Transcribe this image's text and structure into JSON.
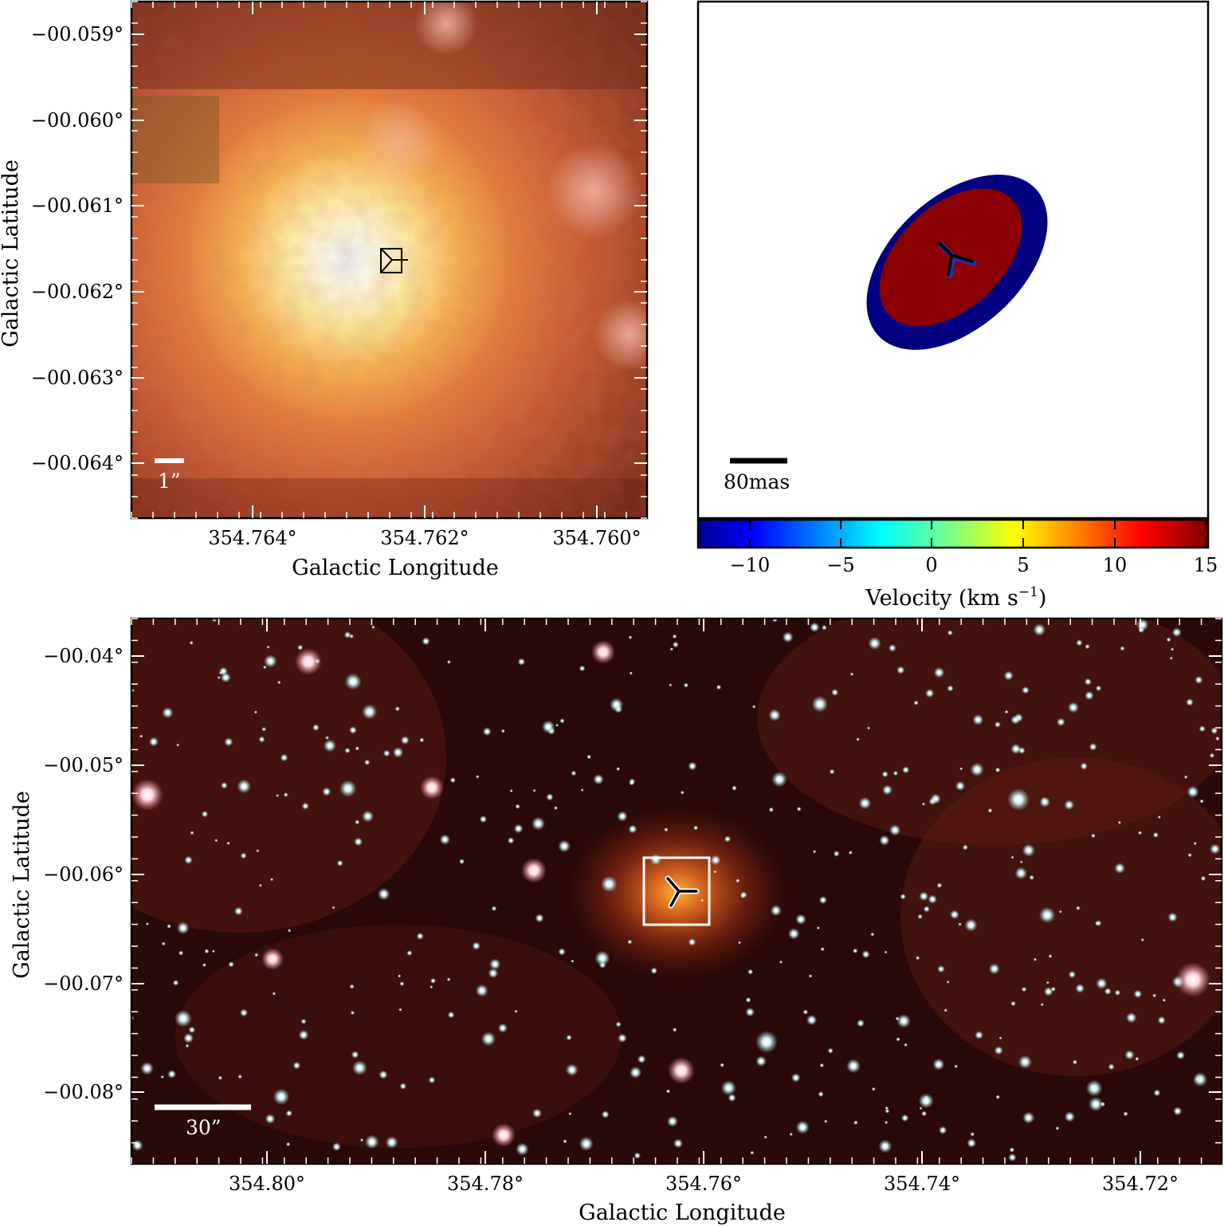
{
  "panels": {
    "top_left": {
      "xlabel": "Galactic Longitude",
      "ylabel": "Galactic Latitude",
      "x_ticks": [
        "354.764°",
        "354.762°",
        "354.760°"
      ],
      "y_ticks": [
        "−00.059°",
        "−00.060°",
        "−00.061°",
        "−00.062°",
        "−00.063°",
        "−00.064°"
      ],
      "scale_bar_label": "1”"
    },
    "top_right": {
      "scale_bar_label": "80mas",
      "colorbar": {
        "label": "Velocity (km s",
        "label_exp": "−1",
        "label_close": ")",
        "ticks": [
          "−10",
          "−5",
          "0",
          "5",
          "10",
          "15"
        ],
        "colormap": "jet",
        "range": [
          -13,
          15
        ]
      },
      "ellipses": [
        {
          "name": "outer",
          "color": "#000080"
        },
        {
          "name": "inner",
          "color": "#8b0000"
        }
      ]
    },
    "bottom": {
      "xlabel": "Galactic Longitude",
      "ylabel": "Galactic Latitude",
      "x_ticks": [
        "354.80°",
        "354.78°",
        "354.76°",
        "354.74°",
        "354.72°"
      ],
      "y_ticks": [
        "−00.04°",
        "−00.05°",
        "−00.06°",
        "−00.07°",
        "−00.08°"
      ],
      "scale_bar_label": "30”"
    }
  }
}
